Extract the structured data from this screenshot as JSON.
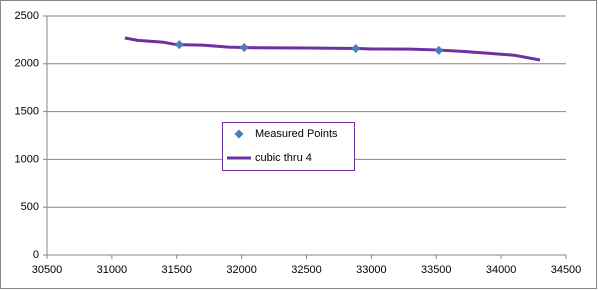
{
  "chart_data": {
    "type": "scatter",
    "xlim": [
      30500,
      34500
    ],
    "xticks": [
      30500,
      31000,
      31500,
      32000,
      32500,
      33000,
      33500,
      34000,
      34500
    ],
    "ylim": [
      0,
      2500
    ],
    "yticks": [
      0,
      500,
      1000,
      1500,
      2000,
      2500
    ],
    "grid": true,
    "legend": "center",
    "series": [
      {
        "name": "Measured Points",
        "type": "scatter",
        "color": "#4a7ebb",
        "x": [
          31520,
          32020,
          32880,
          33520
        ],
        "y": [
          2200,
          2170,
          2160,
          2140
        ]
      },
      {
        "name": "cubic thru 4",
        "type": "line",
        "color": "#7030a0",
        "x": [
          31100,
          31200,
          31400,
          31500,
          31700,
          31900,
          32100,
          32500,
          32900,
          33000,
          33300,
          33500,
          33700,
          33900,
          34100,
          34300
        ],
        "y": [
          2270,
          2245,
          2225,
          2200,
          2195,
          2175,
          2168,
          2165,
          2160,
          2155,
          2153,
          2145,
          2130,
          2110,
          2090,
          2040
        ]
      }
    ]
  }
}
